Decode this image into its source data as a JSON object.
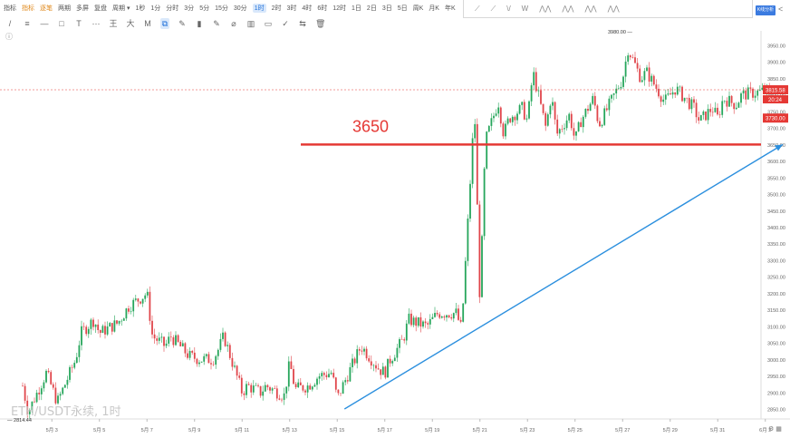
{
  "toolbar": {
    "items": [
      {
        "label": "指标",
        "icon": "indicator-icon",
        "style": "normal"
      },
      {
        "label": "指标",
        "icon": "clock-icon",
        "style": "orange"
      },
      {
        "label": "逐笔",
        "icon": "clock-icon",
        "style": "orange"
      },
      {
        "label": "两期",
        "icon": "compare-icon",
        "style": "normal"
      },
      {
        "label": "多屏",
        "icon": "multi-screen-icon",
        "style": "normal"
      },
      {
        "label": "复盘",
        "icon": "replay-icon",
        "style": "normal"
      },
      {
        "label": "周期 ▾",
        "icon": "",
        "style": "normal"
      }
    ],
    "intervals": [
      "1秒",
      "1分",
      "分时",
      "3分",
      "5分",
      "15分",
      "30分",
      "1时",
      "2时",
      "3时",
      "4时",
      "6时",
      "12时",
      "1日",
      "2日",
      "3日",
      "5日",
      "周K",
      "月K",
      "年K"
    ],
    "active_interval": "1时"
  },
  "drawing_tools": [
    "/",
    "≡",
    "—",
    "□",
    "T",
    "⋯",
    "王",
    "大",
    "M",
    "⧉",
    "✎",
    "▮",
    "✎",
    "⌀",
    "▥",
    "▭",
    "✓",
    "⇆",
    "🗑"
  ],
  "palette_items": [
    "⟋",
    "⟋",
    "\\/",
    "W",
    "⋀⋀",
    "⋀⋀",
    "⋀⋀",
    "⋀⋀"
  ],
  "analysis_button": "K线分析",
  "share_icon": "share-icon",
  "watermark": "ETH/USDT永续, 1时",
  "colors": {
    "up": "#26a65b",
    "down": "#e0454a",
    "support_line": "#e53935",
    "trend_line": "#2b8fde",
    "price_tag": "#e53935"
  },
  "annotation_label": "3650",
  "chart_data": {
    "type": "candlestick",
    "symbol": "ETH/USDT永续",
    "interval": "1时",
    "x_ticks": [
      "5月 3",
      "5月 5",
      "5月 7",
      "5月 9",
      "5月 11",
      "5月 13",
      "5月 15",
      "5月 17",
      "5月 19",
      "5月 21",
      "5月 23",
      "5月 25",
      "5月 27",
      "5月 29",
      "5月 31",
      "6月 2"
    ],
    "y_ticks": [
      3950,
      3900,
      3850,
      3800,
      3750,
      3700,
      3650,
      3600,
      3550,
      3500,
      3450,
      3400,
      3350,
      3300,
      3250,
      3200,
      3150,
      3100,
      3050,
      3000,
      2950,
      2900,
      2850
    ],
    "ylim": [
      2820,
      3990
    ],
    "high_label": "3980.00",
    "low_label": "2814.44",
    "current_price": "3815.58",
    "countdown": "20:24",
    "secondary_tag": "3730.00",
    "horizontal_line": 3650,
    "trend_line": {
      "from": {
        "date": "5月 15",
        "price": 2850
      },
      "to": {
        "date": "6月 3",
        "price": 3650
      }
    },
    "price_path": [
      [
        "5月 2",
        2920
      ],
      [
        "5月 2",
        2840
      ],
      [
        "5月 3",
        2870
      ],
      [
        "5月 3",
        2960
      ],
      [
        "5月 4",
        3000
      ],
      [
        "5月 4",
        3080
      ],
      [
        "5月 5",
        3120
      ],
      [
        "5月 5",
        3080
      ],
      [
        "5月 6",
        3160
      ],
      [
        "5月 6",
        3110
      ],
      [
        "5月 7",
        3200
      ],
      [
        "5月 7",
        3070
      ],
      [
        "5月 8",
        3040
      ],
      [
        "5月 8",
        3070
      ],
      [
        "5月 9",
        3000
      ],
      [
        "5月 9",
        3010
      ],
      [
        "5月 10",
        3030
      ],
      [
        "5月 10",
        3070
      ],
      [
        "5月 10",
        3000
      ],
      [
        "5月 11",
        2900
      ],
      [
        "5月 11",
        2920
      ],
      [
        "5月 12",
        2900
      ],
      [
        "5月 12",
        2920
      ],
      [
        "5月 13",
        2910
      ],
      [
        "5月 13",
        2890
      ],
      [
        "5月 13",
        2990
      ],
      [
        "5月 14",
        2950
      ],
      [
        "5月 14",
        2920
      ],
      [
        "5月 15",
        2880
      ],
      [
        "5月 15",
        2920
      ],
      [
        "5月 15",
        2960
      ],
      [
        "5月 16",
        3040
      ],
      [
        "5月 16",
        3020
      ],
      [
        "5月 17",
        2970
      ],
      [
        "5月 17",
        2960
      ],
      [
        "5月 17",
        3000
      ],
      [
        "5月 18",
        3060
      ],
      [
        "5月 18",
        3120
      ],
      [
        "5月 19",
        3140
      ],
      [
        "5月 19",
        3100
      ],
      [
        "5月 20",
        3140
      ],
      [
        "5月 20",
        3090
      ],
      [
        "5月 20",
        3140
      ],
      [
        "5月 21",
        3170
      ],
      [
        "5月 21",
        3660
      ],
      [
        "5月 21",
        3760
      ],
      [
        "5月 22",
        3680
      ],
      [
        "5月 22",
        3730
      ],
      [
        "5月 22",
        3780
      ],
      [
        "5月 23",
        3720
      ],
      [
        "5月 23",
        3870
      ],
      [
        "5月 23",
        3760
      ],
      [
        "5月 24",
        3800
      ],
      [
        "5月 24",
        3680
      ],
      [
        "5月 24",
        3700
      ],
      [
        "5月 25",
        3660
      ],
      [
        "5月 25",
        3720
      ],
      [
        "5月 25",
        3740
      ],
      [
        "5月 26",
        3710
      ],
      [
        "5月 26",
        3740
      ],
      [
        "5月 26",
        3790
      ],
      [
        "5月 27",
        3850
      ],
      [
        "5月 27",
        3940
      ],
      [
        "5月 28",
        3850
      ],
      [
        "5月 28",
        3870
      ],
      [
        "5月 29",
        3820
      ],
      [
        "5月 29",
        3780
      ],
      [
        "5月 30",
        3760
      ],
      [
        "5月 30",
        3720
      ],
      [
        "5月 31",
        3760
      ],
      [
        "5月 31",
        3730
      ],
      [
        "5月 31",
        3790
      ],
      [
        "6月 1",
        3770
      ],
      [
        "6月 1",
        3800
      ],
      [
        "6月 2",
        3815
      ]
    ]
  }
}
